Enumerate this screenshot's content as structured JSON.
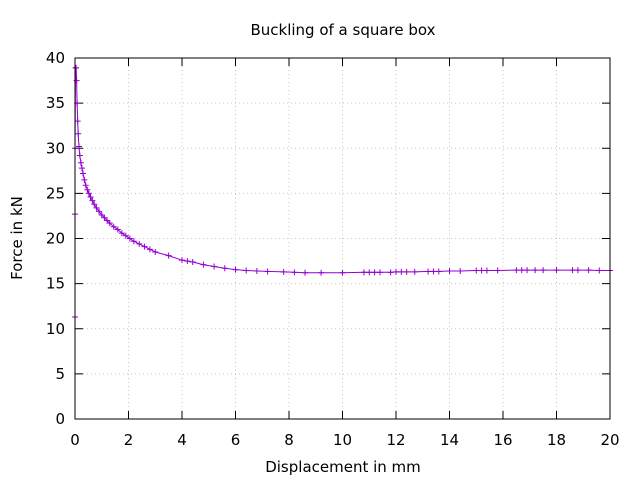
{
  "chart_data": {
    "type": "line",
    "title": "Buckling of a square box",
    "xlabel": "Displacement in mm",
    "ylabel": "Force in kN",
    "xlim": [
      0,
      20
    ],
    "ylim": [
      0,
      40
    ],
    "x_ticks": [
      0,
      2,
      4,
      6,
      8,
      10,
      12,
      14,
      16,
      18,
      20
    ],
    "y_ticks": [
      0,
      5,
      10,
      15,
      20,
      25,
      30,
      35,
      40
    ],
    "grid": true,
    "marker": "plus",
    "line_color": "#9400d3",
    "series": [
      {
        "x": [
          0,
          0.0,
          0.0,
          0.02,
          0.04,
          0.06,
          0.08,
          0.1,
          0.12,
          0.15,
          0.18,
          0.22,
          0.26,
          0.3,
          0.35,
          0.4,
          0.46,
          0.52,
          0.58,
          0.65,
          0.72,
          0.8,
          0.9,
          1.0,
          1.1,
          1.2,
          1.3,
          1.45,
          1.6,
          1.75,
          1.9,
          2.05,
          2.2,
          2.4,
          2.6,
          2.8,
          3.0,
          3.5,
          4.0,
          4.2,
          4.4,
          4.8,
          5.2,
          5.6,
          6.0,
          6.4,
          6.8,
          7.2,
          7.8,
          8.2,
          8.6,
          9.2,
          10.0,
          10.8,
          11.0,
          11.2,
          11.4,
          11.8,
          12.0,
          12.2,
          12.4,
          12.7,
          13.2,
          13.4,
          13.6,
          14.0,
          14.4,
          15.0,
          15.2,
          15.4,
          15.8,
          16.5,
          16.7,
          16.9,
          17.2,
          17.5,
          18.0,
          18.6,
          18.8,
          19.2,
          19.6,
          20.0
        ],
        "y": [
          11.3,
          22.7,
          30.0,
          38.9,
          38.9,
          37.5,
          35.0,
          33.0,
          31.6,
          30.2,
          29.2,
          28.4,
          27.8,
          27.2,
          26.5,
          25.9,
          25.4,
          25.0,
          24.6,
          24.2,
          23.8,
          23.4,
          23.0,
          22.6,
          22.3,
          22.0,
          21.7,
          21.3,
          21.0,
          20.6,
          20.3,
          20.0,
          19.7,
          19.4,
          19.1,
          18.8,
          18.5,
          18.1,
          17.6,
          17.5,
          17.4,
          17.1,
          16.9,
          16.7,
          16.55,
          16.45,
          16.4,
          16.35,
          16.3,
          16.25,
          16.2,
          16.2,
          16.2,
          16.25,
          16.25,
          16.25,
          16.25,
          16.25,
          16.3,
          16.3,
          16.3,
          16.3,
          16.35,
          16.35,
          16.35,
          16.4,
          16.4,
          16.45,
          16.45,
          16.45,
          16.45,
          16.5,
          16.5,
          16.5,
          16.5,
          16.5,
          16.5,
          16.5,
          16.5,
          16.5,
          16.45,
          16.45
        ]
      }
    ]
  }
}
